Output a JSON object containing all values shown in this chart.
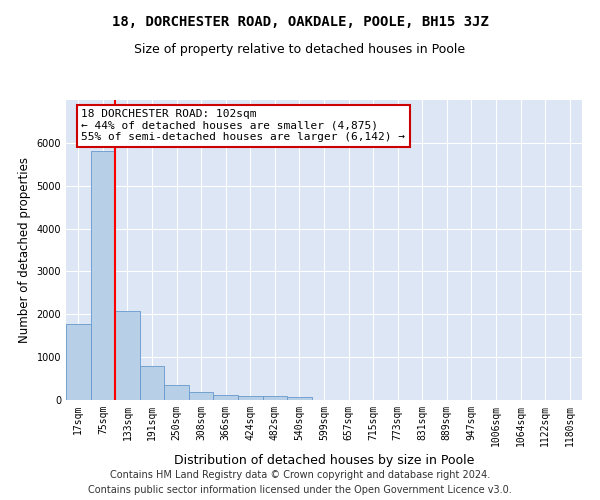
{
  "title": "18, DORCHESTER ROAD, OAKDALE, POOLE, BH15 3JZ",
  "subtitle": "Size of property relative to detached houses in Poole",
  "xlabel": "Distribution of detached houses by size in Poole",
  "ylabel": "Number of detached properties",
  "bar_labels": [
    "17sqm",
    "75sqm",
    "133sqm",
    "191sqm",
    "250sqm",
    "308sqm",
    "366sqm",
    "424sqm",
    "482sqm",
    "540sqm",
    "599sqm",
    "657sqm",
    "715sqm",
    "773sqm",
    "831sqm",
    "889sqm",
    "947sqm",
    "1006sqm",
    "1064sqm",
    "1122sqm",
    "1180sqm"
  ],
  "bar_values": [
    1780,
    5820,
    2080,
    800,
    340,
    185,
    120,
    100,
    90,
    65,
    0,
    0,
    0,
    0,
    0,
    0,
    0,
    0,
    0,
    0,
    0
  ],
  "bar_color": "#b8cfe8",
  "bar_edge_color": "#6699cc",
  "property_line_color": "#ff0000",
  "annotation_text": "18 DORCHESTER ROAD: 102sqm\n← 44% of detached houses are smaller (4,875)\n55% of semi-detached houses are larger (6,142) →",
  "annotation_box_color": "#ffffff",
  "annotation_box_edge_color": "#cc0000",
  "ylim": [
    0,
    7000
  ],
  "yticks": [
    0,
    1000,
    2000,
    3000,
    4000,
    5000,
    6000,
    7000
  ],
  "background_color": "#dce6f5",
  "grid_color": "#ffffff",
  "footer_line1": "Contains HM Land Registry data © Crown copyright and database right 2024.",
  "footer_line2": "Contains public sector information licensed under the Open Government Licence v3.0.",
  "title_fontsize": 10,
  "subtitle_fontsize": 9,
  "xlabel_fontsize": 9,
  "ylabel_fontsize": 8.5,
  "annotation_fontsize": 8,
  "footer_fontsize": 7,
  "tick_fontsize": 7
}
